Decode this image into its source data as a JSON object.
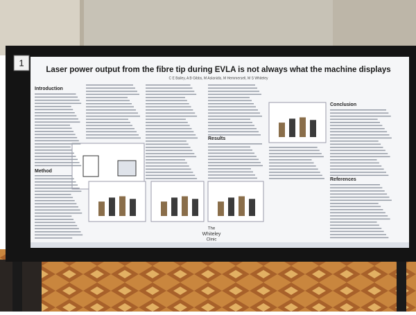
{
  "board_number": "1",
  "poster": {
    "title": "Laser power output from the fibre tip during EVLA is not always what the machine displays",
    "authors": "C E Bailey, A B Gibbs, M Aslanidis, M Hemmersell, M S Whiteley",
    "sections": {
      "introduction": "Introduction",
      "method": "Method",
      "results": "Results",
      "conclusion": "Conclusion",
      "references": "References"
    },
    "logo": {
      "line1": "The",
      "line2": "Whiteley",
      "line3": "Clinic"
    }
  }
}
